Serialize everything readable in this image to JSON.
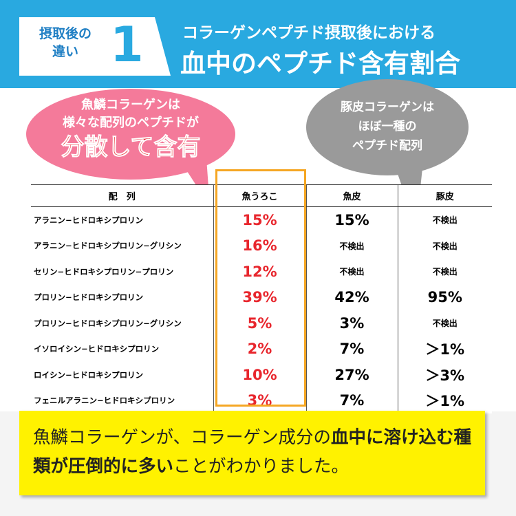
{
  "header": {
    "badge": [
      "摂取後の",
      "違い"
    ],
    "number": "1",
    "title": [
      "コラーゲンペプチド摂取後における",
      "血中のペプチド含有割合"
    ]
  },
  "bubbles": {
    "fish": [
      "魚鱗コラーゲンは",
      "様々な配列のペプチドが",
      "分散して含有"
    ],
    "pig": [
      "豚皮コラーゲンは",
      "ほぼ一種の",
      "ペプチド配列"
    ]
  },
  "table": {
    "header": [
      "配　列",
      "魚うろこ",
      "魚皮",
      "豚皮"
    ],
    "rows": [
      [
        "アラニン−ヒドロキシプロリン",
        "15%",
        "15%",
        "不検出"
      ],
      [
        "アラニン−ヒドロキシプロリン−グリシン",
        "16%",
        "不検出",
        "不検出"
      ],
      [
        "セリン−ヒドロキシプロリン−プロリン",
        "12%",
        "不検出",
        "不検出"
      ],
      [
        "プロリン−ヒドロキシプロリン",
        "39%",
        "42%",
        "95%"
      ],
      [
        "プロリン−ヒドロキシプロリン−グリシン",
        "5%",
        "3%",
        "不検出"
      ],
      [
        "イソロイシン−ヒドロキシプロリン",
        "2%",
        "7%",
        "＞1%"
      ],
      [
        "ロイシン−ヒドロキシプロリン",
        "10%",
        "27%",
        "＞3%"
      ],
      [
        "フェニルアラニン−ヒドロキシプロリン",
        "3%",
        "7%",
        "＞1%"
      ]
    ]
  },
  "conclusion": [
    "魚鱗コラーゲンが、コラーゲン成分の",
    "血中に溶け込む種類が圧倒的に多い",
    "ことがわかりました。"
  ]
}
